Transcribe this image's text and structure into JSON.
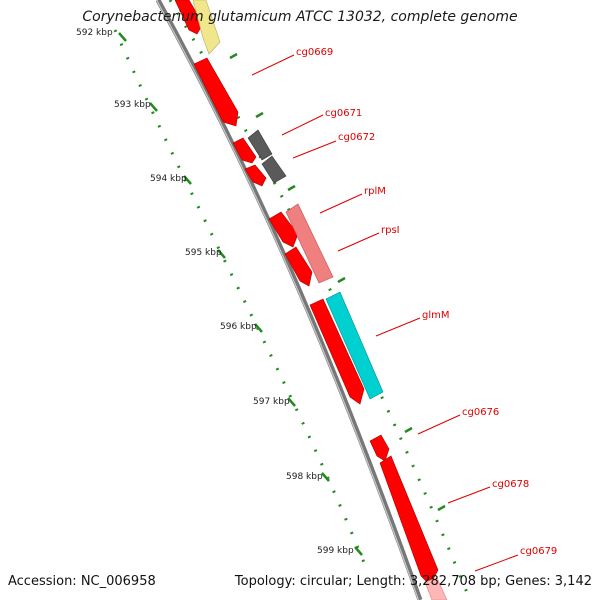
{
  "title": "Corynebacterium glutamicum ATCC 13032, complete genome",
  "footer": {
    "accession": "Accession: NC_006958",
    "stats": "Topology: circular; Length: 3,282,708 bp; Genes: 3,142"
  },
  "ruler_ticks": [
    "592 kbp",
    "593 kbp",
    "594 kbp",
    "595 kbp",
    "596 kbp",
    "597 kbp",
    "598 kbp",
    "599 kbp"
  ],
  "gene_labels": [
    "cg0669",
    "cg0671",
    "cg0672",
    "rplM",
    "rpsI",
    "glmM",
    "cg0676",
    "cg0678",
    "cg0679"
  ],
  "colors": {
    "gene_red": "#ff0000",
    "gene_gray": "#5a5a5a",
    "gene_pink": "#f08080",
    "gene_cyan": "#00d0d0",
    "gene_yellow": "#f0e68c",
    "backbone": "#777777",
    "tick_green": "#228b22",
    "label_red": "#dd0000"
  }
}
